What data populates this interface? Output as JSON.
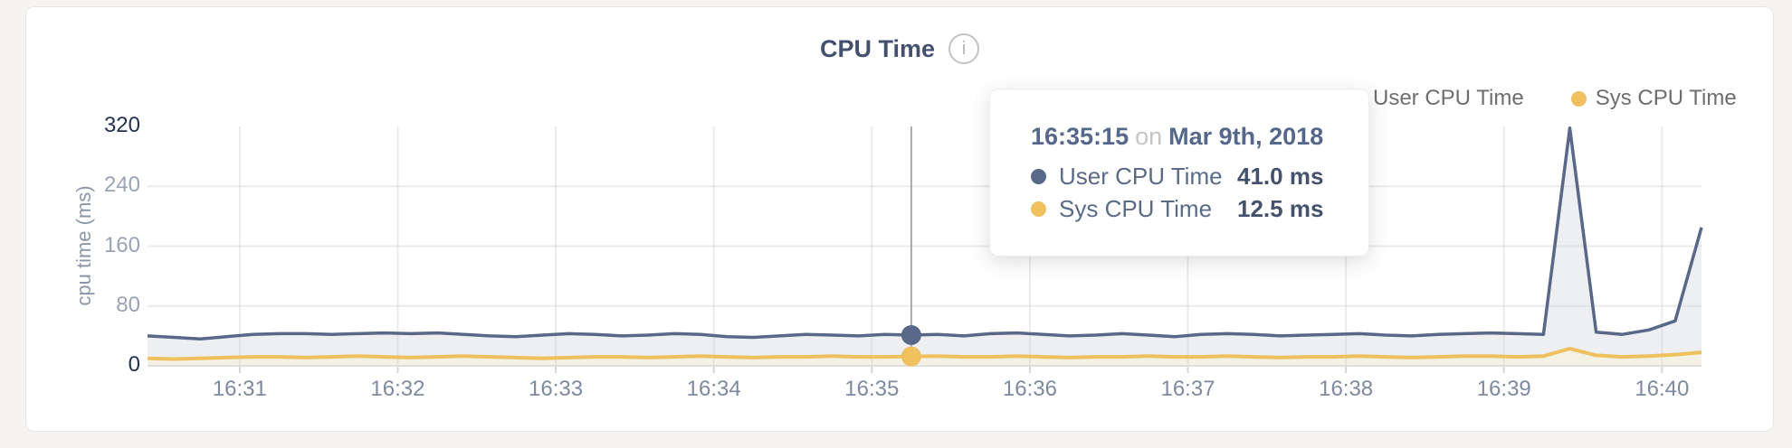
{
  "card": {
    "title": "CPU Time",
    "info_glyph": "i"
  },
  "legend": {
    "items": [
      {
        "label": "User CPU Time",
        "color": "#596888"
      },
      {
        "label": "Sys CPU Time",
        "color": "#efc05e"
      }
    ]
  },
  "tooltip": {
    "time": "16:35:15",
    "connector": "on",
    "date": "Mar 9th, 2018",
    "rows": [
      {
        "label": "User CPU Time",
        "value": "41.0 ms",
        "color": "#596888"
      },
      {
        "label": "Sys CPU Time",
        "value": "12.5 ms",
        "color": "#efc05e"
      }
    ]
  },
  "chart_data": {
    "type": "area",
    "title": "CPU Time",
    "ylabel": "cpu time (ms)",
    "ylim": [
      0,
      320
    ],
    "y_ticks": [
      0,
      80,
      160,
      240,
      320
    ],
    "x_ticks": [
      "16:31",
      "16:32",
      "16:33",
      "16:34",
      "16:35",
      "16:36",
      "16:37",
      "16:38",
      "16:39",
      "16:40"
    ],
    "grid": true,
    "legend_position": "top-right",
    "hover_point": "16:35:15",
    "x": [
      "16:30:25",
      "16:30:35",
      "16:30:45",
      "16:30:55",
      "16:31:05",
      "16:31:15",
      "16:31:25",
      "16:31:35",
      "16:31:45",
      "16:31:55",
      "16:32:05",
      "16:32:15",
      "16:32:25",
      "16:32:35",
      "16:32:45",
      "16:32:55",
      "16:33:05",
      "16:33:15",
      "16:33:25",
      "16:33:35",
      "16:33:45",
      "16:33:55",
      "16:34:05",
      "16:34:15",
      "16:34:25",
      "16:34:35",
      "16:34:45",
      "16:34:55",
      "16:35:05",
      "16:35:15",
      "16:35:25",
      "16:35:35",
      "16:35:45",
      "16:35:55",
      "16:36:05",
      "16:36:15",
      "16:36:25",
      "16:36:35",
      "16:36:45",
      "16:36:55",
      "16:37:05",
      "16:37:15",
      "16:37:25",
      "16:37:35",
      "16:37:45",
      "16:37:55",
      "16:38:05",
      "16:38:15",
      "16:38:25",
      "16:38:35",
      "16:38:45",
      "16:38:55",
      "16:39:05",
      "16:39:15",
      "16:39:25",
      "16:39:35",
      "16:39:45",
      "16:39:55",
      "16:40:05",
      "16:40:15"
    ],
    "series": [
      {
        "name": "User CPU Time",
        "color": "#596888",
        "fill": "#edeff3",
        "line_width": 3.5,
        "values": [
          40,
          38,
          36,
          39,
          42,
          43,
          43,
          42,
          43,
          44,
          43,
          44,
          42,
          40,
          39,
          41,
          43,
          42,
          40,
          41,
          43,
          42,
          39,
          38,
          40,
          42,
          41,
          40,
          42,
          41,
          42,
          40,
          43,
          44,
          42,
          40,
          41,
          43,
          41,
          39,
          42,
          43,
          42,
          40,
          41,
          42,
          43,
          41,
          40,
          42,
          43,
          44,
          43,
          42,
          318,
          45,
          42,
          48,
          60,
          185
        ]
      },
      {
        "name": "Sys CPU Time",
        "color": "#efc05e",
        "fill": "#f4f1e5",
        "line_width": 4,
        "values": [
          10,
          9,
          10,
          11,
          12,
          12,
          11,
          12,
          13,
          12,
          11,
          12,
          13,
          12,
          11,
          10,
          11,
          12,
          12,
          11,
          12,
          13,
          12,
          11,
          12,
          12,
          13,
          12,
          12,
          12.5,
          13,
          12,
          12,
          13,
          12,
          11,
          12,
          12,
          13,
          12,
          12,
          13,
          12,
          11,
          12,
          12,
          13,
          12,
          11,
          12,
          13,
          13,
          12,
          13,
          23,
          14,
          12,
          13,
          15,
          18
        ]
      }
    ]
  },
  "colors": {
    "page_bg": "#f5f4f2",
    "card_bg": "#ffffff",
    "card_border": "#e8e6e3",
    "grid": "#cfcfcf",
    "baseline": "#dedede",
    "hover_line": "#a9a9a9",
    "y_tick_dark": "#26334f",
    "y_tick_light": "#9aa3b4",
    "x_tick": "#7d8a9f",
    "title": "#44516e"
  }
}
